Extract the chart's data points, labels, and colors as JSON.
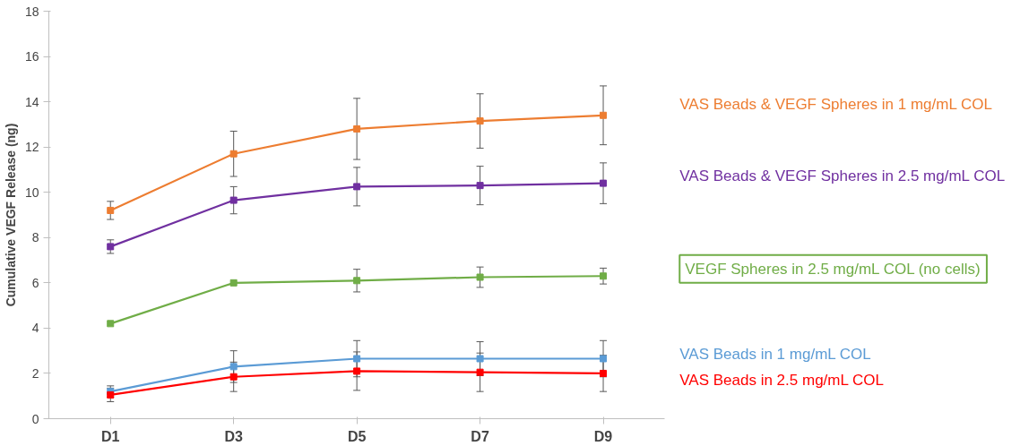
{
  "chart_data": {
    "type": "line",
    "ylabel": "Cumulative VEGF Release (ng)",
    "categories": [
      "D1",
      "D3",
      "D5",
      "D7",
      "D9"
    ],
    "ylim": [
      0,
      18
    ],
    "yticks": [
      0,
      2,
      4,
      6,
      8,
      10,
      12,
      14,
      16,
      18
    ],
    "grid": false,
    "legend": false,
    "marker": "square",
    "line_style": "solid",
    "series": [
      {
        "name": "VAS Beads & VEGF Spheres in 1 mg/mL COL",
        "color": "#ed7d31",
        "values": [
          9.2,
          11.7,
          12.8,
          13.15,
          13.4
        ],
        "errors": [
          0.4,
          1.0,
          1.35,
          1.2,
          1.3
        ]
      },
      {
        "name": "VAS Beads & VEGF Spheres in 2.5 mg/mL COL",
        "color": "#7030a0",
        "values": [
          7.6,
          9.65,
          10.25,
          10.3,
          10.4
        ],
        "errors": [
          0.3,
          0.6,
          0.85,
          0.85,
          0.9
        ]
      },
      {
        "name": "VEGF Spheres in 2.5 mg/mL COL (no cells)",
        "color": "#70ad47",
        "values": [
          4.2,
          6.0,
          6.1,
          6.25,
          6.3
        ],
        "errors": [
          null,
          null,
          0.5,
          0.45,
          0.35
        ]
      },
      {
        "name": "VAS Beads in 1 mg/mL COL",
        "color": "#5b9bd5",
        "values": [
          1.2,
          2.3,
          2.65,
          2.65,
          2.65
        ],
        "errors": [
          0.25,
          0.7,
          0.8,
          0.75,
          0.8
        ]
      },
      {
        "name": "VAS Beads in 2.5 mg/mL COL",
        "color": "#ff0000",
        "values": [
          1.05,
          1.85,
          2.1,
          2.05,
          2.0
        ],
        "errors": [
          0.3,
          0.65,
          0.85,
          0.85,
          0.8
        ]
      }
    ]
  }
}
